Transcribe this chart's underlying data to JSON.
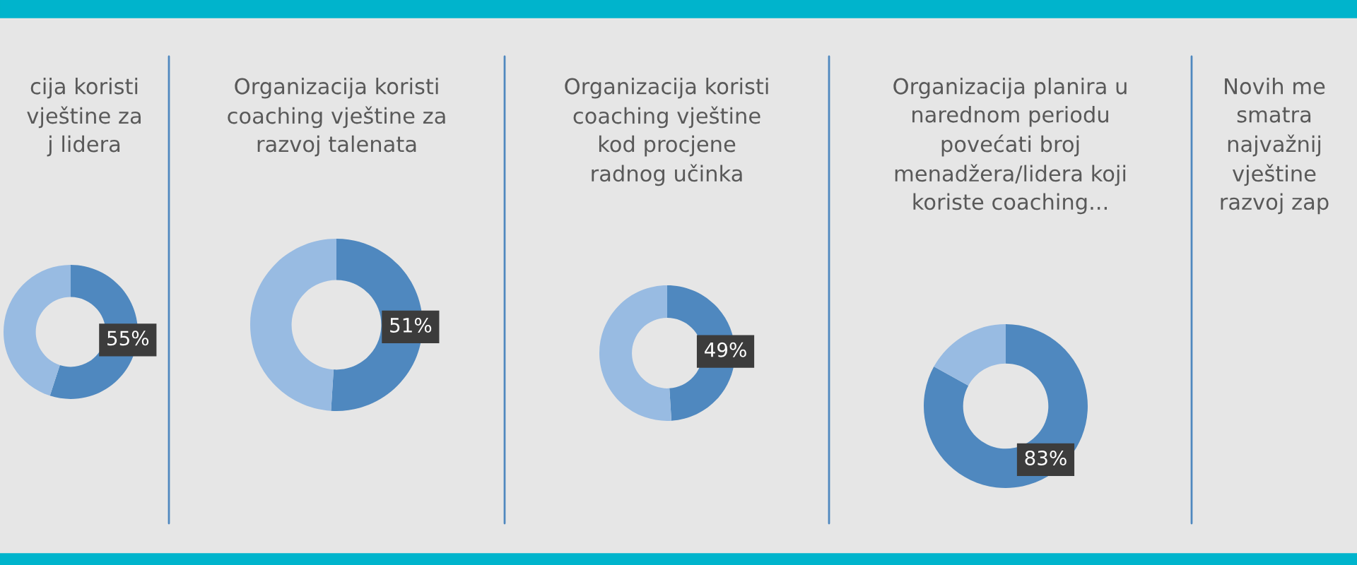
{
  "chart_data": [
    {
      "type": "donut",
      "title": "cija koristi\nvještine za\nj lidera",
      "categories": [
        null,
        null
      ],
      "values": [
        55,
        45
      ],
      "colors": [
        "#4f88bf",
        "#98bbe2"
      ],
      "value_labels": [
        "55%",
        null
      ]
    },
    {
      "type": "donut",
      "title": "Organizacija koristi\ncoaching vještine za\nrazvoj talenata",
      "categories": [
        null,
        null
      ],
      "values": [
        51,
        49
      ],
      "colors": [
        "#4f88bf",
        "#98bbe2"
      ],
      "value_labels": [
        "51%",
        null
      ]
    },
    {
      "type": "donut",
      "title": "Organizacija koristi\ncoaching vještine\nkod procjene\nradnog učinka",
      "categories": [
        null,
        null
      ],
      "values": [
        49,
        51
      ],
      "colors": [
        "#4f88bf",
        "#98bbe2"
      ],
      "value_labels": [
        "49%",
        null
      ]
    },
    {
      "type": "donut",
      "title": "Organizacija planira u\nnarednom periodu\npovećati broj\nmenadžera/lidera koji\nkoriste coaching...",
      "categories": [
        null,
        null
      ],
      "values": [
        83,
        17
      ],
      "colors": [
        "#4f88bf",
        "#98bbe2"
      ],
      "value_labels": [
        "83%",
        null
      ]
    },
    {
      "type": "other",
      "title": "Novih me\nsmatra\nnajvažnij\nvještine\nrazvoj zap"
    }
  ]
}
